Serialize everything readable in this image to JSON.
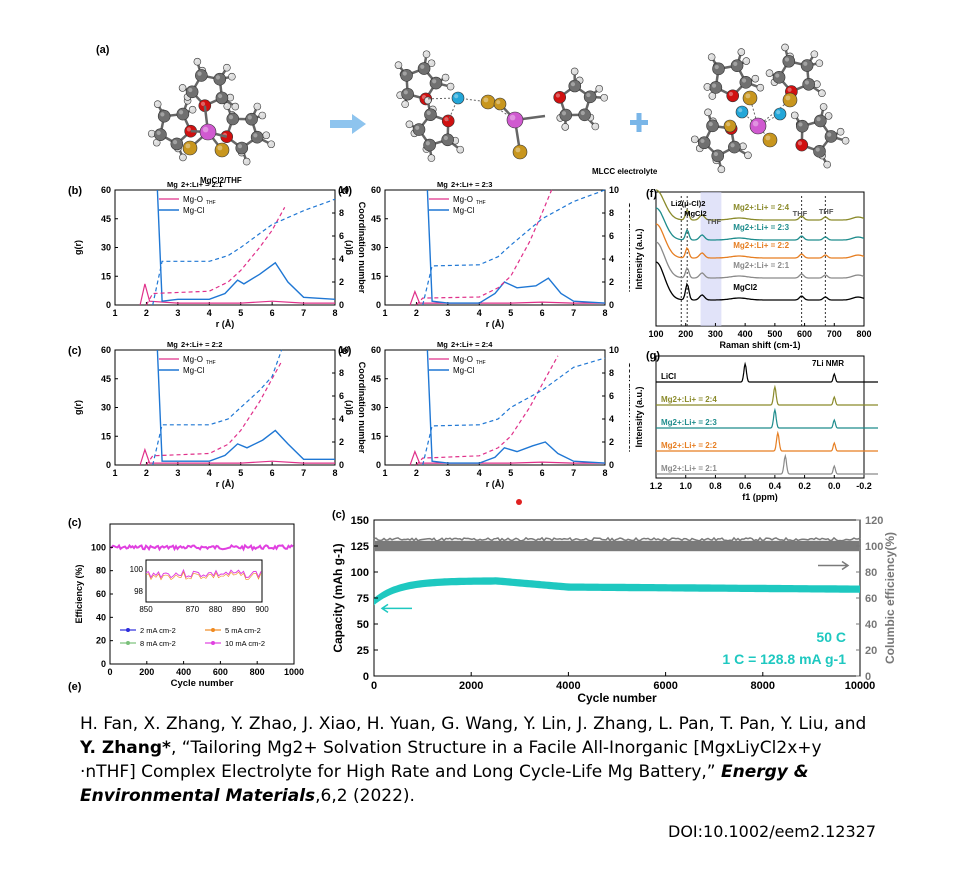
{
  "panel_a": {
    "label": "(a)",
    "caption_left": "MgCl2/THF",
    "caption_middle": "MLCC electrolyte",
    "colors": {
      "mg": "#d05ad0",
      "cl": "#c8961e",
      "o": "#d01010",
      "li": "#23a6d8",
      "c": "#707070",
      "h": "#dddddd",
      "arrow": "#8ec4ee",
      "plus": "#7ab6e8"
    }
  },
  "rdf_panels": [
    {
      "label": "(b)",
      "ratio_prefix": "Mg",
      "ratio_text": "2+:Li+ = 2:1",
      "legend": [
        "Mg-O",
        "Mg-Cl"
      ],
      "legend_sub": "THF",
      "ylabel": "g(r)",
      "y2label": "Coordination number",
      "xlabel": "r (Å)",
      "yticks": [
        "0",
        "15",
        "30",
        "45",
        "60"
      ],
      "y2ticks": [
        "0",
        "2",
        "4",
        "6",
        "8",
        "10"
      ],
      "xticks": [
        "1",
        "2",
        "3",
        "4",
        "5",
        "6",
        "7",
        "8"
      ]
    },
    {
      "label": "(d)",
      "ratio_prefix": "Mg",
      "ratio_text": "2+:Li+ = 2:3",
      "legend": [
        "Mg-O",
        "Mg-Cl"
      ],
      "legend_sub": "THF",
      "ylabel": "g(r)",
      "y2label": "Coordination number",
      "xlabel": "r (Å)",
      "yticks": [
        "0",
        "15",
        "30",
        "45",
        "60"
      ],
      "y2ticks": [
        "0",
        "2",
        "4",
        "6",
        "8",
        "10"
      ],
      "xticks": [
        "1",
        "2",
        "3",
        "4",
        "5",
        "6",
        "7",
        "8"
      ]
    },
    {
      "label": "(c)",
      "ratio_prefix": "Mg",
      "ratio_text": "2+:Li+ = 2:2",
      "legend": [
        "Mg-O",
        "Mg-Cl"
      ],
      "legend_sub": "THF",
      "ylabel": "g(r)",
      "y2label": "Coordination number",
      "xlabel": "r (Å)",
      "yticks": [
        "0",
        "15",
        "30",
        "45",
        "60"
      ],
      "y2ticks": [
        "0",
        "2",
        "4",
        "6",
        "8",
        "10"
      ],
      "xticks": [
        "1",
        "2",
        "3",
        "4",
        "5",
        "6",
        "7",
        "8"
      ]
    },
    {
      "label": "(e)",
      "ratio_prefix": "Mg",
      "ratio_text": "2+:Li+ = 2:4",
      "legend": [
        "Mg-O",
        "Mg-Cl"
      ],
      "legend_sub": "THF",
      "ylabel": "g(r)",
      "y2label": "Coordination number",
      "xlabel": "r (Å)",
      "yticks": [
        "0",
        "15",
        "30",
        "45",
        "60"
      ],
      "y2ticks": [
        "0",
        "2",
        "4",
        "6",
        "8",
        "10"
      ],
      "xticks": [
        "1",
        "2",
        "3",
        "4",
        "5",
        "6",
        "7",
        "8"
      ]
    }
  ],
  "panel_f": {
    "label": "(f)",
    "xlabel": "Raman shift (cm-1)",
    "ylabel": "Intensity (a.u.)",
    "xticks": [
      "100",
      "200",
      "300",
      "400",
      "500",
      "600",
      "700",
      "800"
    ],
    "annotations": [
      "Li2(μ-Cl)2",
      "MgCl2",
      "THF",
      "THF",
      "THF"
    ],
    "series": [
      {
        "name": "Mg2+:Li+ = 2:4",
        "color": "#8a8a2a"
      },
      {
        "name": "Mg2+:Li+ = 2:3",
        "color": "#1e8c8c"
      },
      {
        "name": "Mg2+:Li+ = 2:2",
        "color": "#e67e22"
      },
      {
        "name": "Mg2+:Li+ = 2:1",
        "color": "#8a8a8a"
      },
      {
        "name": "MgCl2",
        "color": "#000000"
      }
    ]
  },
  "panel_g": {
    "label": "(g)",
    "title": "7Li NMR",
    "xlabel": "f1 (ppm)",
    "ylabel": "Intensity (a.u.)",
    "xticks": [
      "1.2",
      "1.0",
      "0.8",
      "0.6",
      "0.4",
      "0.2",
      "0.0",
      "-0.2"
    ],
    "series": [
      {
        "name": "LiCl",
        "color": "#000000"
      },
      {
        "name": "Mg2+:Li+ = 2:4",
        "color": "#8a8a2a"
      },
      {
        "name": "Mg2+:Li+ = 2:3",
        "color": "#1e8c8c"
      },
      {
        "name": "Mg2+:Li+ = 2:2",
        "color": "#e67e22"
      },
      {
        "name": "Mg2+:Li+ = 2:1",
        "color": "#8a8a8a"
      }
    ]
  },
  "panel_efficiency": {
    "label": "(c)",
    "label_bottom": "(e)",
    "ylabel": "Efficiency (%)",
    "xlabel": "Cycle number",
    "yticks": [
      "0",
      "20",
      "40",
      "60",
      "80",
      "100"
    ],
    "xticks": [
      "0",
      "200",
      "400",
      "600",
      "800",
      "1000"
    ],
    "inset_yticks": [
      "98",
      "100"
    ],
    "inset_xticks": [
      "850",
      "",
      "870",
      "880",
      "890",
      "900"
    ],
    "legend": [
      {
        "name": "2 mA cm-2",
        "color": "#2d2ddc"
      },
      {
        "name": "5 mA cm-2",
        "color": "#f08a20"
      },
      {
        "name": "8 mA cm-2",
        "color": "#7ac07a"
      },
      {
        "name": "10 mA cm-2",
        "color": "#e040e0"
      }
    ]
  },
  "panel_capacity": {
    "label": "(c)",
    "ylabel": "Capacity (mAh g-1)",
    "y2label": "Columbic efficiency(%)",
    "xlabel": "Cycle number",
    "yticks": [
      "0",
      "25",
      "50",
      "75",
      "100",
      "125",
      "150"
    ],
    "y2ticks": [
      "0",
      "20",
      "40",
      "60",
      "80",
      "100",
      "120"
    ],
    "xticks": [
      "0",
      "2000",
      "4000",
      "6000",
      "8000",
      "10000"
    ],
    "rate": "50 C",
    "c_def": "1 C = 128.8 mA g-1",
    "cap_color": "#1ec8c0",
    "ce_color": "#7a7a7a"
  },
  "citation": {
    "authors": "H. Fan, X. Zhang, Y. Zhao, J. Xiao, H. Yuan, G. Wang, Y. Lin, J. Zhang, L. Pan, T. Pan, Y. Liu, and ",
    "corr": "Y. Zhang*",
    "title": ", “Tailoring Mg2+ Solvation Structure in a Facile All-Inorganic [MgxLiyCl2x+y ·nTHF] Complex Electrolyte for High Rate and Long Cycle-Life Mg Battery,” ",
    "journal": "Energy & Environmental Materials",
    "tail": ",6,2 (2022).",
    "doi": "DOI:10.1002/eem2.12327"
  }
}
